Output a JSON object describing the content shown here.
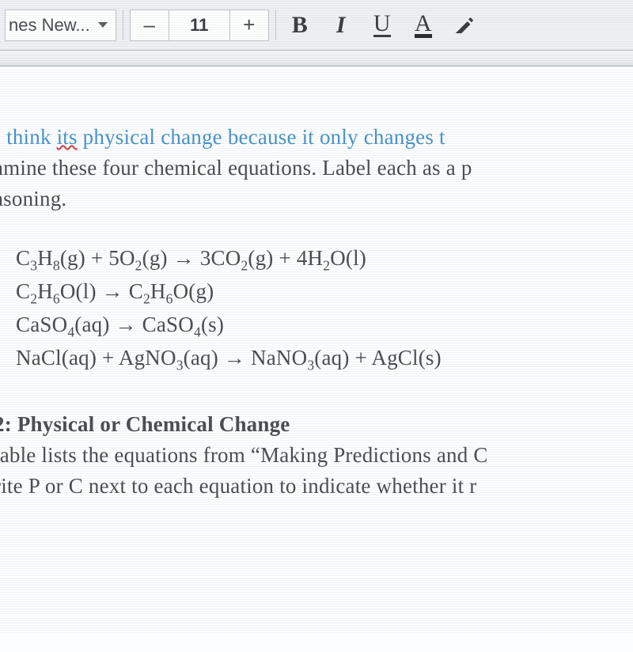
{
  "toolbar": {
    "font_name": "nes New...",
    "decrease_label": "–",
    "font_size": "11",
    "increase_label": "+",
    "bold_label": "B",
    "italic_label": "I",
    "underline_label": "U",
    "textcolor_label": "A"
  },
  "body": {
    "blue_prefix": "I think ",
    "blue_its": "its",
    "blue_rest": " physical change because it only changes t",
    "line2": "amine these four chemical equations. Label each as a p",
    "line3": "asoning.",
    "eq1_html": "C<sub>3</sub>H<sub>8</sub>(g) + 5O<sub>2</sub>(g)  →   3CO<sub>2</sub>(g) + 4H<sub>2</sub>O(l)",
    "eq2_html": "C<sub>2</sub>H<sub>6</sub>O(l)  →  C<sub>2</sub>H<sub>6</sub>O(g)",
    "eq3_html": "CaSO<sub>4</sub>(aq)  →  CaSO<sub>4</sub>(s)",
    "eq4_html": "NaCl(aq) + AgNO<sub>3</sub>(aq)  →   NaNO<sub>3</sub>(aq) + AgCl(s)",
    "section_head": " 2: Physical or Chemical Change",
    "tail1": "table lists the equations from “Making Predictions and C",
    "tail2": "rite P or C next to each equation to indicate whether it r"
  },
  "colors": {
    "toolbar_bg": "#edf1f4",
    "page_bg": "#fcfdfe",
    "body_bg": "#d8dbdd",
    "text": "#4a4f52",
    "blue": "#4a95c9",
    "squiggle": "#c84040"
  }
}
